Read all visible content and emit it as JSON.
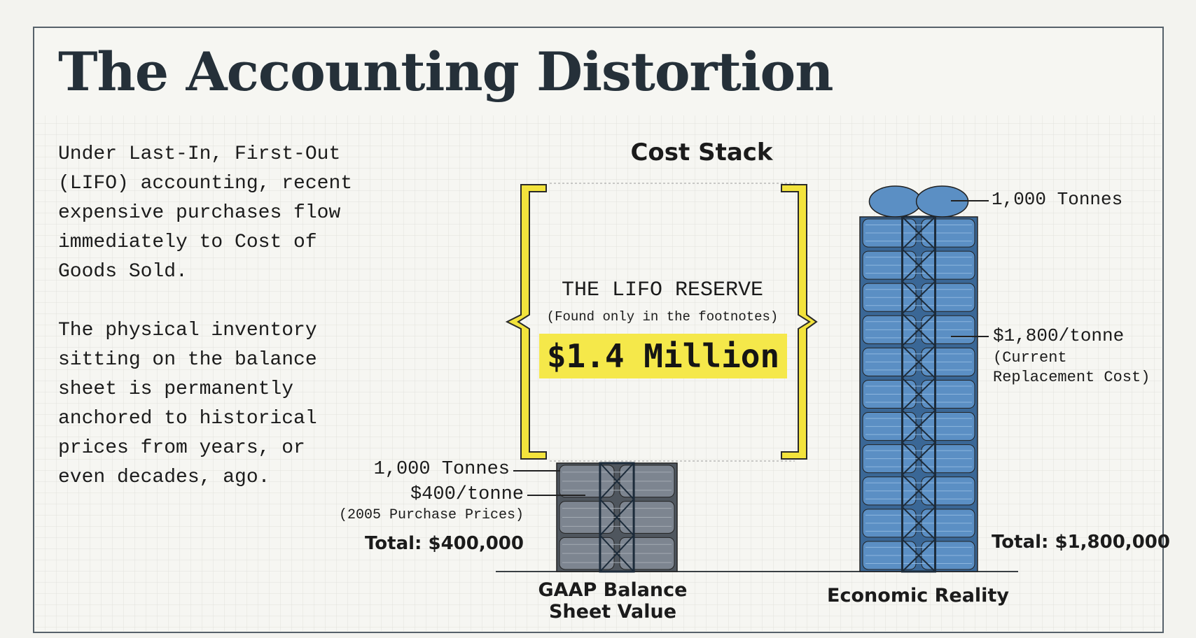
{
  "title": "The Accounting Distortion",
  "intro": {
    "paragraphs": [
      "Under Last-In, First-Out (LIFO) accounting, recent expensive purchases flow immediately to Cost of Goods Sold.",
      "The physical inventory sitting on the balance sheet is permanently anchored to historical prices from years, or even decades, ago."
    ]
  },
  "cost_stack": {
    "heading": "Cost Stack",
    "reserve": {
      "label": "THE LIFO RESERVE",
      "note": "(Found only in the footnotes)",
      "amount": "$1.4 Million"
    },
    "gaap": {
      "quantity": "1,000 Tonnes",
      "price": "$400/tonne",
      "price_note": "(2005 Purchase Prices)",
      "total": "Total: $400,000",
      "label": "GAAP Balance Sheet Value"
    },
    "economic": {
      "quantity": "1,000 Tonnes",
      "price": "$1,800/tonne",
      "price_note": "(Current Replacement Cost)",
      "total": "Total: $1,800,000",
      "label": "Economic Reality"
    }
  }
}
